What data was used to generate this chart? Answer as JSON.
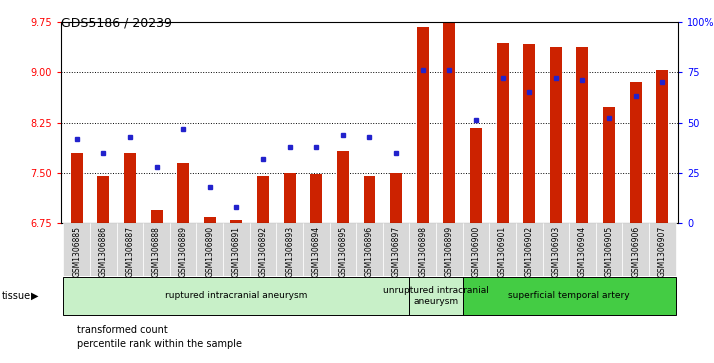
{
  "title": "GDS5186 / 20239",
  "samples": [
    "GSM1306885",
    "GSM1306886",
    "GSM1306887",
    "GSM1306888",
    "GSM1306889",
    "GSM1306890",
    "GSM1306891",
    "GSM1306892",
    "GSM1306893",
    "GSM1306894",
    "GSM1306895",
    "GSM1306896",
    "GSM1306897",
    "GSM1306898",
    "GSM1306899",
    "GSM1306900",
    "GSM1306901",
    "GSM1306902",
    "GSM1306903",
    "GSM1306904",
    "GSM1306905",
    "GSM1306906",
    "GSM1306907"
  ],
  "bar_values": [
    7.8,
    7.45,
    7.8,
    6.95,
    7.65,
    6.85,
    6.8,
    7.45,
    7.5,
    7.48,
    7.82,
    7.45,
    7.5,
    9.67,
    9.75,
    8.17,
    9.43,
    9.42,
    9.38,
    9.37,
    8.48,
    8.85,
    9.03
  ],
  "percentile_values": [
    42,
    35,
    43,
    28,
    47,
    18,
    8,
    32,
    38,
    38,
    44,
    43,
    35,
    76,
    76,
    51,
    72,
    65,
    72,
    71,
    52,
    63,
    70
  ],
  "groups": [
    {
      "label": "ruptured intracranial aneurysm",
      "start": 0,
      "end": 13,
      "color": "#c8f0c8"
    },
    {
      "label": "unruptured intracranial\naneurysm",
      "start": 13,
      "end": 15,
      "color": "#c8f0c8"
    },
    {
      "label": "superficial temporal artery",
      "start": 15,
      "end": 23,
      "color": "#44cc44"
    }
  ],
  "ylim": [
    6.75,
    9.75
  ],
  "yticks": [
    6.75,
    7.5,
    8.25,
    9.0,
    9.75
  ],
  "right_ylim": [
    0,
    100
  ],
  "right_yticks": [
    0,
    25,
    50,
    75,
    100
  ],
  "bar_color": "#cc2200",
  "dot_color": "#2222cc",
  "bg_color": "#ffffff",
  "bar_bottom": 6.75,
  "tick_bg_color": "#d8d8d8"
}
